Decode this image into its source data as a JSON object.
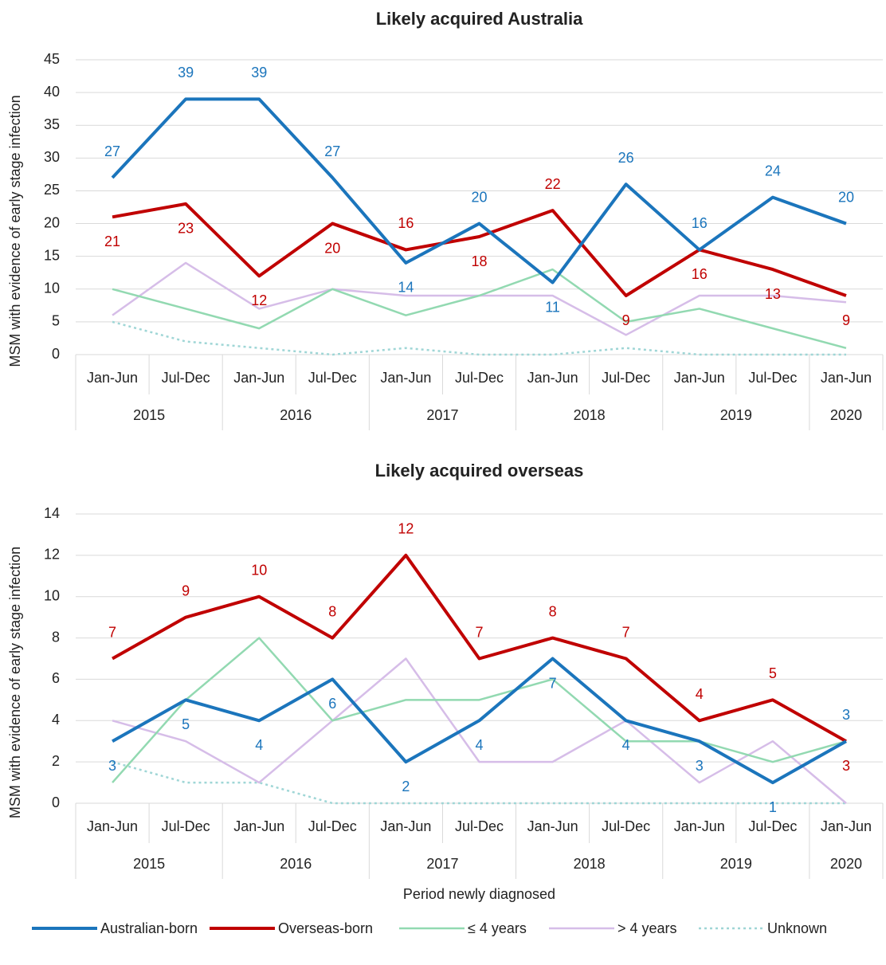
{
  "chart_data": [
    {
      "type": "line",
      "title": "Likely acquired Australia",
      "y_label": "MSM with evidence of early stage infection",
      "categories": [
        "Jan-Jun",
        "Jul-Dec",
        "Jan-Jun",
        "Jul-Dec",
        "Jan-Jun",
        "Jul-Dec",
        "Jan-Jun",
        "Jul-Dec",
        "Jan-Jun",
        "Jul-Dec",
        "Jan-Jun"
      ],
      "groups": [
        "2015",
        "2015",
        "2016",
        "2016",
        "2017",
        "2017",
        "2018",
        "2018",
        "2019",
        "2019",
        "2020"
      ],
      "ylim": [
        0,
        45
      ],
      "yticks": [
        0,
        5,
        10,
        15,
        20,
        25,
        30,
        35,
        40,
        45
      ],
      "grid": true,
      "series": [
        {
          "name": "Australian-born",
          "color": "#1b75bc",
          "width": 4,
          "data_labels": true,
          "values": [
            27,
            39,
            39,
            27,
            14,
            20,
            11,
            26,
            16,
            24,
            20
          ]
        },
        {
          "name": "Overseas-born",
          "color": "#c00000",
          "width": 4,
          "data_labels": true,
          "values": [
            21,
            23,
            12,
            20,
            16,
            18,
            22,
            9,
            16,
            13,
            9
          ]
        },
        {
          "name": "≤ 4 years",
          "color": "#92d9b1",
          "width": 2.5,
          "values": [
            10,
            7,
            4,
            10,
            6,
            9,
            13,
            5,
            7,
            4,
            1
          ]
        },
        {
          "name": "> 4 years",
          "color": "#d6bde8",
          "width": 2.5,
          "values": [
            6,
            14,
            7,
            10,
            9,
            9,
            9,
            3,
            9,
            9,
            8
          ]
        },
        {
          "name": "Unknown",
          "color": "#9fd6d6",
          "width": 2.5,
          "line_style": "dotted",
          "values": [
            5,
            2,
            1,
            0,
            1,
            0,
            0,
            1,
            0,
            0,
            0
          ]
        }
      ]
    },
    {
      "type": "line",
      "title": "Likely acquired overseas",
      "y_label": "MSM with evidence of early stage infection",
      "x_label": "Period newly diagnosed",
      "categories": [
        "Jan-Jun",
        "Jul-Dec",
        "Jan-Jun",
        "Jul-Dec",
        "Jan-Jun",
        "Jul-Dec",
        "Jan-Jun",
        "Jul-Dec",
        "Jan-Jun",
        "Jul-Dec",
        "Jan-Jun"
      ],
      "groups": [
        "2015",
        "2015",
        "2016",
        "2016",
        "2017",
        "2017",
        "2018",
        "2018",
        "2019",
        "2019",
        "2020"
      ],
      "ylim": [
        0,
        14
      ],
      "yticks": [
        0,
        2,
        4,
        6,
        8,
        10,
        12,
        14
      ],
      "grid": true,
      "series": [
        {
          "name": "Australian-born",
          "color": "#1b75bc",
          "width": 4,
          "data_labels": true,
          "values": [
            3,
            5,
            4,
            6,
            2,
            4,
            7,
            4,
            3,
            1,
            3
          ]
        },
        {
          "name": "Overseas-born",
          "color": "#c00000",
          "width": 4,
          "data_labels": true,
          "values": [
            7,
            9,
            10,
            8,
            12,
            7,
            8,
            7,
            4,
            5,
            3
          ]
        },
        {
          "name": "≤ 4 years",
          "color": "#92d9b1",
          "width": 2.5,
          "values": [
            1,
            5,
            8,
            4,
            5,
            5,
            6,
            3,
            3,
            2,
            3
          ]
        },
        {
          "name": "> 4 years",
          "color": "#d6bde8",
          "width": 2.5,
          "values": [
            4,
            3,
            1,
            4,
            7,
            2,
            2,
            4,
            1,
            3,
            0
          ]
        },
        {
          "name": "Unknown",
          "color": "#9fd6d6",
          "width": 2.5,
          "line_style": "dotted",
          "values": [
            2,
            1,
            1,
            0,
            0,
            0,
            0,
            0,
            0,
            0,
            0
          ]
        }
      ]
    }
  ]
}
